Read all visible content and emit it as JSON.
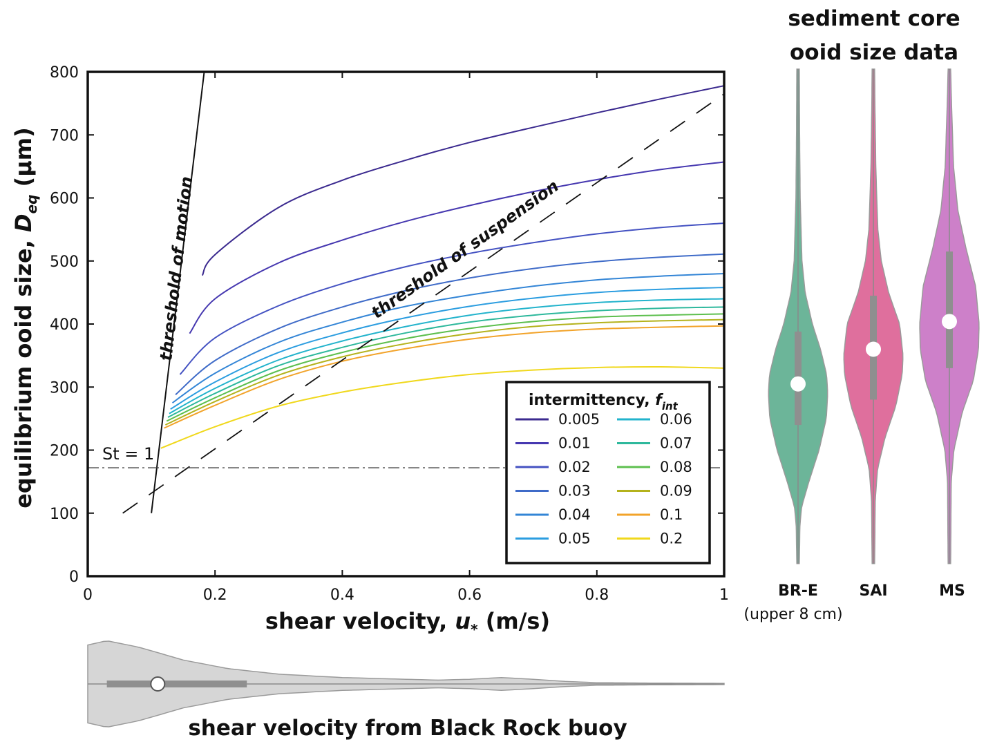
{
  "chart_data": [
    {
      "type": "line",
      "xlabel": "shear velocity, u* (m/s)",
      "xlabel_main": "shear velocity, ",
      "xlabel_var": "u",
      "xlabel_sub": "*",
      "xlabel_unit": " (m/s)",
      "ylabel_main": "equilibrium ooid size, ",
      "ylabel_var": "D",
      "ylabel_sub": "eq",
      "ylabel_unit": " (μm)",
      "xlim": [
        0,
        1
      ],
      "ylim": [
        0,
        800
      ],
      "grid": false,
      "x_ticks": [
        0,
        0.2,
        0.4,
        0.6,
        0.8,
        1
      ],
      "x_tick_labels": [
        "0",
        "0.2",
        "0.4",
        "0.6",
        "0.8",
        "1"
      ],
      "y_ticks": [
        0,
        100,
        200,
        300,
        400,
        500,
        600,
        700,
        800
      ],
      "y_tick_labels": [
        "0",
        "100",
        "200",
        "300",
        "400",
        "500",
        "600",
        "700",
        "800"
      ],
      "legend": {
        "placement": "bottom-right",
        "title_main": "intermittency, ",
        "title_var": "f",
        "title_sub": "int"
      },
      "series": [
        {
          "name": "0.005",
          "color": "#3b2a8f",
          "x": [
            0.18,
            0.2,
            0.3,
            0.4,
            0.5,
            0.6,
            0.7,
            0.8,
            0.9,
            1.0
          ],
          "y": [
            477,
            510,
            585,
            628,
            660,
            688,
            712,
            735,
            757,
            778
          ]
        },
        {
          "name": "0.01",
          "color": "#4638b0",
          "x": [
            0.16,
            0.2,
            0.3,
            0.4,
            0.5,
            0.6,
            0.7,
            0.8,
            0.9,
            1.0
          ],
          "y": [
            385,
            440,
            497,
            533,
            563,
            588,
            610,
            629,
            645,
            657
          ]
        },
        {
          "name": "0.02",
          "color": "#4452c2",
          "x": [
            0.145,
            0.2,
            0.3,
            0.4,
            0.5,
            0.6,
            0.7,
            0.8,
            0.9,
            1.0
          ],
          "y": [
            320,
            378,
            429,
            464,
            491,
            512,
            529,
            543,
            553,
            560
          ]
        },
        {
          "name": "0.03",
          "color": "#3f6bc8",
          "x": [
            0.138,
            0.2,
            0.3,
            0.4,
            0.5,
            0.6,
            0.7,
            0.8,
            0.9,
            1.0
          ],
          "y": [
            288,
            342,
            393,
            427,
            453,
            473,
            488,
            499,
            506,
            511
          ]
        },
        {
          "name": "0.04",
          "color": "#3385d6",
          "x": [
            0.133,
            0.2,
            0.3,
            0.4,
            0.5,
            0.6,
            0.7,
            0.8,
            0.9,
            1.0
          ],
          "y": [
            275,
            322,
            371,
            403,
            428,
            446,
            460,
            470,
            476,
            480
          ]
        },
        {
          "name": "0.05",
          "color": "#2b9de0",
          "x": [
            0.13,
            0.2,
            0.3,
            0.4,
            0.5,
            0.6,
            0.7,
            0.8,
            0.9,
            1.0
          ],
          "y": [
            265,
            308,
            355,
            386,
            410,
            428,
            441,
            450,
            455,
            458
          ]
        },
        {
          "name": "0.06",
          "color": "#22b3cc",
          "x": [
            0.128,
            0.2,
            0.3,
            0.4,
            0.5,
            0.6,
            0.7,
            0.8,
            0.9,
            1.0
          ],
          "y": [
            258,
            298,
            343,
            373,
            396,
            414,
            426,
            434,
            438,
            440
          ]
        },
        {
          "name": "0.07",
          "color": "#2db89c",
          "x": [
            0.126,
            0.2,
            0.3,
            0.4,
            0.5,
            0.6,
            0.7,
            0.8,
            0.9,
            1.0
          ],
          "y": [
            252,
            290,
            334,
            363,
            386,
            403,
            414,
            421,
            425,
            427
          ]
        },
        {
          "name": "0.08",
          "color": "#5dbf4e",
          "x": [
            0.124,
            0.2,
            0.3,
            0.4,
            0.5,
            0.6,
            0.7,
            0.8,
            0.9,
            1.0
          ],
          "y": [
            246,
            283,
            326,
            355,
            377,
            393,
            404,
            411,
            414,
            416
          ]
        },
        {
          "name": "0.09",
          "color": "#b4b21c",
          "x": [
            0.122,
            0.2,
            0.3,
            0.4,
            0.5,
            0.6,
            0.7,
            0.8,
            0.9,
            1.0
          ],
          "y": [
            240,
            277,
            319,
            348,
            369,
            385,
            396,
            402,
            405,
            407
          ]
        },
        {
          "name": "0.1",
          "color": "#f2a32a",
          "x": [
            0.12,
            0.2,
            0.3,
            0.4,
            0.5,
            0.6,
            0.7,
            0.8,
            0.9,
            1.0
          ],
          "y": [
            235,
            271,
            312,
            341,
            361,
            376,
            386,
            392,
            395,
            397
          ]
        },
        {
          "name": "0.2",
          "color": "#f0d81c",
          "x": [
            0.115,
            0.2,
            0.3,
            0.4,
            0.5,
            0.6,
            0.7,
            0.8,
            0.9,
            1.0
          ],
          "y": [
            203,
            237,
            270,
            292,
            308,
            320,
            327,
            331,
            332,
            330
          ]
        }
      ],
      "threshold_lines": {
        "motion": {
          "label": "threshold of motion",
          "x": [
            0.1,
            0.183
          ],
          "y": [
            100,
            800
          ]
        },
        "suspension": {
          "label": "threshold of suspension",
          "x": [
            0.055,
            1.0
          ],
          "y": [
            100,
            765
          ]
        },
        "stokes": {
          "label": "St = 1",
          "y": 172
        }
      }
    },
    {
      "type": "violin",
      "title_line1": "sediment core",
      "title_line2": "ooid size data",
      "shares_y_axis_with": "equilibrium ooid size (μm)",
      "violins": [
        {
          "label": "BR-E",
          "sublabel": "(upper 8 cm)",
          "color": "#52a887",
          "median": 305,
          "q1": 240,
          "q3": 388,
          "min": 20,
          "max": 805,
          "profile": [
            [
              20,
              0.02
            ],
            [
              80,
              0.04
            ],
            [
              110,
              0.1
            ],
            [
              150,
              0.35
            ],
            [
              200,
              0.7
            ],
            [
              250,
              0.95
            ],
            [
              290,
              1.0
            ],
            [
              320,
              0.96
            ],
            [
              360,
              0.75
            ],
            [
              400,
              0.47
            ],
            [
              450,
              0.22
            ],
            [
              500,
              0.11
            ],
            [
              600,
              0.05
            ],
            [
              700,
              0.03
            ],
            [
              805,
              0.02
            ]
          ]
        },
        {
          "label": "SAI",
          "sublabel": "",
          "color": "#d9568c",
          "median": 360,
          "q1": 280,
          "q3": 445,
          "min": 20,
          "max": 805,
          "profile": [
            [
              20,
              0.02
            ],
            [
              120,
              0.04
            ],
            [
              170,
              0.12
            ],
            [
              220,
              0.38
            ],
            [
              270,
              0.75
            ],
            [
              320,
              0.97
            ],
            [
              350,
              1.0
            ],
            [
              400,
              0.88
            ],
            [
              450,
              0.5
            ],
            [
              500,
              0.25
            ],
            [
              550,
              0.13
            ],
            [
              650,
              0.06
            ],
            [
              750,
              0.03
            ],
            [
              805,
              0.02
            ]
          ]
        },
        {
          "label": "MS",
          "sublabel": "",
          "color": "#c46ac0",
          "median": 404,
          "q1": 330,
          "q3": 515,
          "min": 20,
          "max": 805,
          "profile": [
            [
              20,
              0.02
            ],
            [
              150,
              0.04
            ],
            [
              200,
              0.13
            ],
            [
              260,
              0.42
            ],
            [
              310,
              0.8
            ],
            [
              360,
              0.98
            ],
            [
              400,
              1.0
            ],
            [
              460,
              0.88
            ],
            [
              520,
              0.55
            ],
            [
              580,
              0.27
            ],
            [
              650,
              0.12
            ],
            [
              750,
              0.05
            ],
            [
              805,
              0.02
            ]
          ]
        }
      ]
    },
    {
      "type": "violin",
      "orientation": "horizontal",
      "title": "shear velocity from Black Rock buoy",
      "shares_x_axis_with": "shear velocity (m/s)",
      "color": "#d6d6d6",
      "median": 0.11,
      "q1": 0.03,
      "q3": 0.25,
      "min": 0.0,
      "max": 1.0,
      "profile": [
        [
          0,
          0.9
        ],
        [
          0.03,
          1.0
        ],
        [
          0.08,
          0.85
        ],
        [
          0.15,
          0.55
        ],
        [
          0.22,
          0.35
        ],
        [
          0.3,
          0.22
        ],
        [
          0.4,
          0.14
        ],
        [
          0.5,
          0.1
        ],
        [
          0.55,
          0.08
        ],
        [
          0.6,
          0.1
        ],
        [
          0.65,
          0.14
        ],
        [
          0.7,
          0.1
        ],
        [
          0.75,
          0.05
        ],
        [
          0.8,
          0.02
        ],
        [
          0.9,
          0.01
        ],
        [
          1.0,
          0.005
        ]
      ]
    }
  ]
}
